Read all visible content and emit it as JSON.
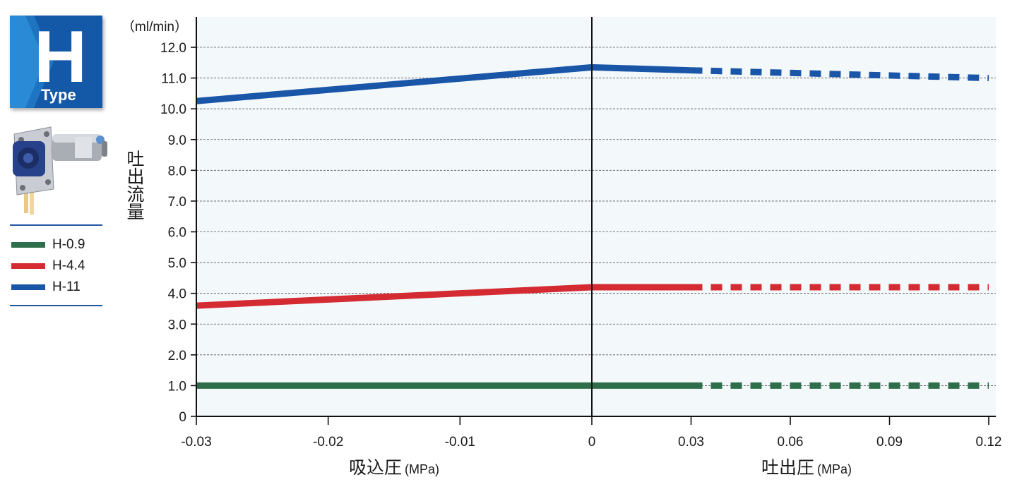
{
  "badge": {
    "letter": "H",
    "type_label": "Type",
    "color": "#1459a8"
  },
  "legend": {
    "items": [
      {
        "label": "H-0.9",
        "color": "#2f6e4b"
      },
      {
        "label": "H-4.4",
        "color": "#d42a32"
      },
      {
        "label": "H-11",
        "color": "#1a56a7"
      }
    ]
  },
  "chart_data": {
    "type": "line",
    "unit_label": "（ml/min）",
    "ylabel": "吐出流量",
    "ylim": [
      0,
      12
    ],
    "yticks": [
      "0",
      "1.0",
      "2.0",
      "3.0",
      "4.0",
      "5.0",
      "6.0",
      "7.0",
      "8.0",
      "9.0",
      "10.0",
      "11.0",
      "12.0"
    ],
    "grid": true,
    "background_color": "#f3f8fb",
    "suction_axis": {
      "label": "吸込圧",
      "unit": "(MPa)",
      "range": [
        -0.03,
        0
      ],
      "ticks": [
        "-0.03",
        "-0.02",
        "-0.01",
        "0"
      ]
    },
    "discharge_axis": {
      "label": "吐出圧",
      "unit": "(MPa)",
      "range": [
        0,
        0.12
      ],
      "ticks": [
        "0.03",
        "0.06",
        "0.09",
        "0.12"
      ]
    },
    "series": [
      {
        "name": "H-0.9",
        "color": "#2f6e4b",
        "suction": [
          [
            -0.03,
            1.0
          ],
          [
            0,
            1.0
          ]
        ],
        "discharge_solid": [
          [
            0,
            1.0
          ],
          [
            0.03,
            1.0
          ]
        ],
        "discharge_dashed": [
          [
            0.03,
            1.0
          ],
          [
            0.12,
            1.0
          ]
        ]
      },
      {
        "name": "H-4.4",
        "color": "#d42a32",
        "suction": [
          [
            -0.03,
            3.6
          ],
          [
            0,
            4.2
          ]
        ],
        "discharge_solid": [
          [
            0,
            4.2
          ],
          [
            0.03,
            4.2
          ]
        ],
        "discharge_dashed": [
          [
            0.03,
            4.2
          ],
          [
            0.12,
            4.2
          ]
        ]
      },
      {
        "name": "H-11",
        "color": "#1a56a7",
        "suction": [
          [
            -0.03,
            10.25
          ],
          [
            0,
            11.35
          ]
        ],
        "discharge_solid": [
          [
            0,
            11.35
          ],
          [
            0.03,
            11.25
          ]
        ],
        "discharge_dashed": [
          [
            0.03,
            11.25
          ],
          [
            0.12,
            11.0
          ]
        ]
      }
    ]
  }
}
